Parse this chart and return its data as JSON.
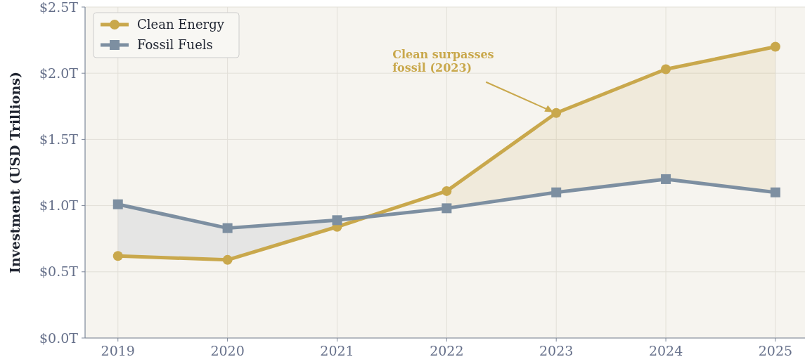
{
  "chart_data": {
    "type": "line",
    "ylabel": "Investment (USD Trillions)",
    "x": [
      2019,
      2020,
      2021,
      2022,
      2023,
      2024,
      2025
    ],
    "series": [
      {
        "name": "Clean Energy",
        "color": "#c9a84c",
        "marker": "circle",
        "values": [
          0.62,
          0.59,
          0.84,
          1.11,
          1.7,
          2.03,
          2.2
        ],
        "lower": [
          null,
          null,
          null,
          0.98,
          1.1,
          1.2,
          1.1
        ],
        "upper": [
          null,
          null,
          null,
          1.11,
          1.7,
          2.03,
          2.2
        ]
      },
      {
        "name": "Fossil Fuels",
        "color": "#7d8fa1",
        "marker": "square",
        "values": [
          1.01,
          0.83,
          0.89,
          0.98,
          1.1,
          1.2,
          1.1
        ],
        "lower": [
          0.62,
          0.59,
          0.84,
          null,
          null,
          null,
          null
        ],
        "upper": [
          1.01,
          0.83,
          0.89,
          null,
          null,
          null,
          null
        ]
      }
    ],
    "xlim": [
      2018.7,
      2025.27
    ],
    "xticks": [
      2019,
      2020,
      2021,
      2022,
      2023,
      2024,
      2025
    ],
    "ylim": [
      0,
      2.5
    ],
    "yticks": [
      {
        "value": 0,
        "label": "$0.0T"
      },
      {
        "value": 0.5,
        "label": "$0.5T"
      },
      {
        "value": 1,
        "label": "$1.0T"
      },
      {
        "value": 1.5,
        "label": "$1.5T"
      },
      {
        "value": 2,
        "label": "$2.0T"
      },
      {
        "value": 2.5,
        "label": "$2.5T"
      }
    ],
    "grid": true,
    "legend": "top left",
    "line_style": "solid",
    "annotations": [
      {
        "text": "Clean surpasses fossil (2023)",
        "x": 2023,
        "y": 1.7
      }
    ]
  }
}
